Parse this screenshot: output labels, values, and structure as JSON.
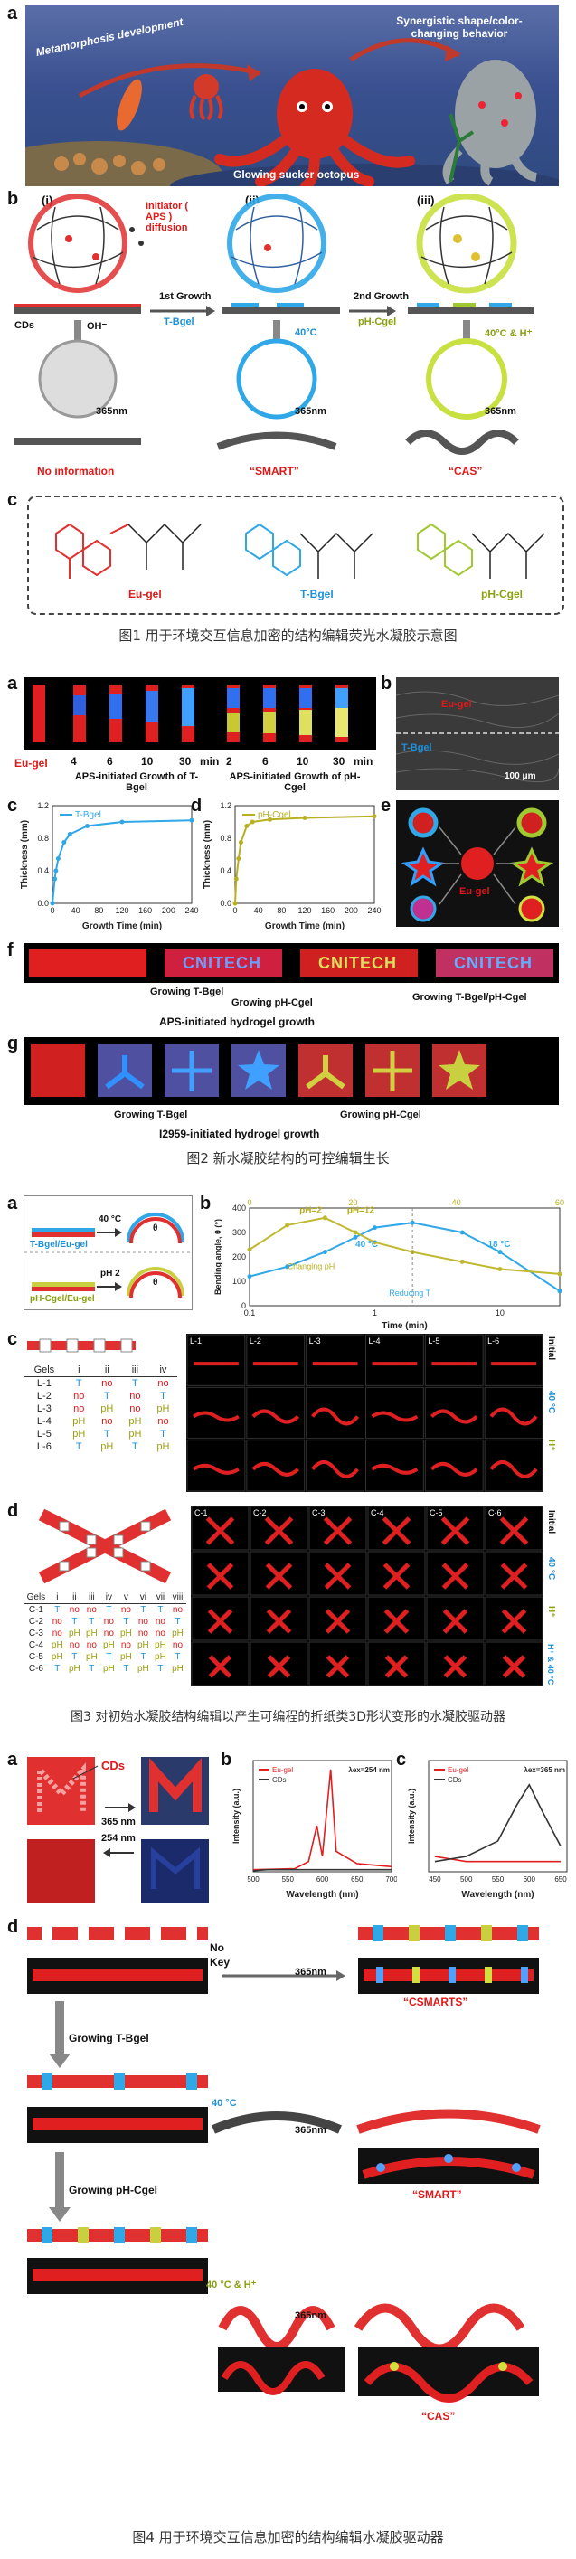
{
  "fig1": {
    "panel_a": "a",
    "panel_b": "b",
    "panel_c": "c",
    "scene": {
      "metamorphosis": "Metamorphosis development",
      "synergistic": "Synergistic shape/color-changing behavior",
      "octopus": "Glowing sucker octopus"
    },
    "steps": {
      "i": "(i)",
      "ii": "(ii)",
      "iii": "(iii)"
    },
    "initiator": "Initiator ( APS ) diffusion",
    "cds": "CDs",
    "oh": "OH⁻",
    "growth1": "1st Growth",
    "tgel": "T-Bgel",
    "growth2": "2nd Growth",
    "pcgel": "pH-Cgel",
    "t40": "40°C",
    "t40h": "40°C & H⁺",
    "nm365": "365nm",
    "no_info": "No information",
    "smart": "“SMART”",
    "cas": "“CAS”",
    "eu_gel": "Eu-gel",
    "t_bgel": "T-Bgel",
    "ph_cgel": "pH-Cgel"
  },
  "caption1": "图1 用于环境交互信息加密的结构编辑荧光水凝胶示意图",
  "fig2": {
    "a": "a",
    "b": "b",
    "c": "c",
    "d": "d",
    "e": "e",
    "f": "f",
    "g": "g",
    "eu_gel": "Eu-gel",
    "times_t": [
      "4",
      "6",
      "10",
      "30"
    ],
    "times_p": [
      "2",
      "6",
      "10",
      "30"
    ],
    "min": "min",
    "aps_t": "APS-initiated Growth of T-Bgel",
    "aps_p": "APS-initiated Growth of pH-Cgel",
    "sem_eu": "Eu-gel",
    "sem_t": "T-Bgel",
    "scale": "100 μm",
    "chart_c_legend": "T-Bgel",
    "chart_d_legend": "pH-Cgel",
    "ylabel": "Thickness (mm)",
    "xlabel": "Growth Time (min)",
    "cnitech": "CNITECH",
    "growing_t": "Growing T-Bgel",
    "growing_p": "Growing pH-Cgel",
    "growing_tp": "Growing T-Bgel/pH-Cgel",
    "aps_growth": "APS-initiated hydrogel growth",
    "i2959_growth": "I2959-initiated hydrogel growth",
    "e_center": "Eu-gel"
  },
  "caption2": "图2 新水凝胶结构的可控编辑生长",
  "fig3": {
    "a": "a",
    "b": "b",
    "c": "c",
    "d": "d",
    "tb_eu": "T-Bgel/Eu-gel",
    "pc_eu": "pH-Cgel/Eu-gel",
    "t40": "40 °C",
    "ph2": "pH 2",
    "theta": "θ",
    "ylabel": "Bending angle, θ (°)",
    "xlabel": "Time (min)",
    "ph2_label": "pH=2",
    "ph12_label": "pH=12",
    "changing_ph": "Changing pH",
    "reducing_t": "Reducing T",
    "c40": "40 °C",
    "c18": "18 °C",
    "gels_head": [
      "Gels",
      "i",
      "ii",
      "iii",
      "iv"
    ],
    "gels_rows": [
      [
        "L-1",
        "T",
        "no",
        "T",
        "no"
      ],
      [
        "L-2",
        "no",
        "T",
        "no",
        "T"
      ],
      [
        "L-3",
        "no",
        "pH",
        "no",
        "pH"
      ],
      [
        "L-4",
        "pH",
        "no",
        "pH",
        "no"
      ],
      [
        "L-5",
        "pH",
        "T",
        "pH",
        "T"
      ],
      [
        "L-6",
        "T",
        "pH",
        "T",
        "pH"
      ]
    ],
    "l_cols": [
      "L-1",
      "L-2",
      "L-3",
      "L-4",
      "L-5",
      "L-6"
    ],
    "c_head": [
      "Gels",
      "i",
      "ii",
      "iii",
      "iv",
      "v",
      "vi",
      "vii",
      "viii"
    ],
    "c_rows": [
      [
        "C-1",
        "T",
        "no",
        "no",
        "T",
        "no",
        "T",
        "T",
        "no"
      ],
      [
        "C-2",
        "no",
        "T",
        "T",
        "no",
        "T",
        "no",
        "no",
        "T"
      ],
      [
        "C-3",
        "no",
        "pH",
        "pH",
        "no",
        "pH",
        "no",
        "no",
        "pH"
      ],
      [
        "C-4",
        "pH",
        "no",
        "no",
        "pH",
        "no",
        "pH",
        "pH",
        "no"
      ],
      [
        "C-5",
        "pH",
        "T",
        "pH",
        "T",
        "pH",
        "T",
        "pH",
        "T"
      ],
      [
        "C-6",
        "T",
        "pH",
        "T",
        "pH",
        "T",
        "pH",
        "T",
        "pH"
      ]
    ],
    "c_cols": [
      "C-1",
      "C-2",
      "C-3",
      "C-4",
      "C-5",
      "C-6"
    ],
    "side_initial": "Initial",
    "side_40": "40 °C",
    "side_h": "H⁺",
    "side_h40": "H⁺ & 40 °C"
  },
  "caption3": "图3 对初始水凝胶结构编辑以产生可编程的折纸类3D形状变形的水凝胶驱动器",
  "fig4": {
    "a": "a",
    "b": "b",
    "c": "c",
    "d": "d",
    "cds": "CDs",
    "m": "M",
    "nm365": "365 nm",
    "nm254": "254 nm",
    "legend_eu": "Eu-gel",
    "legend_cds": "CDs",
    "b_ex": "λex=254 nm",
    "c_ex": "λex=365 nm",
    "ylabel": "Intensity (a.u.)",
    "xlabel": "Wavelength (nm)",
    "b_ticks": [
      "500",
      "550",
      "600",
      "650",
      "700"
    ],
    "c_ticks": [
      "450",
      "500",
      "550",
      "600",
      "650"
    ],
    "no": "No",
    "key": "Key",
    "growing_t": "Growing T-Bgel",
    "growing_p": "Growing pH-Cgel",
    "t40": "40 °C",
    "t40h": "40 °C & H⁺",
    "nm365d": "365nm",
    "csmarts": "“CSMARTS”",
    "smart": "“SMART”",
    "cas": "“CAS”"
  },
  "caption4": "图4 用于环境交互信息加密的结构编辑水凝胶驱动器",
  "chart_data": [
    {
      "type": "line",
      "title": "",
      "xlabel": "Growth Time (min)",
      "ylabel": "Thickness (mm)",
      "series": [
        {
          "name": "T-Bgel",
          "x": [
            0,
            4,
            6,
            10,
            20,
            30,
            60,
            120,
            240
          ],
          "values": [
            0,
            0.3,
            0.4,
            0.55,
            0.75,
            0.85,
            0.95,
            1.0,
            1.02
          ]
        }
      ],
      "xlim": [
        0,
        240
      ],
      "ylim": [
        0,
        1.2
      ],
      "x_ticks": [
        "0",
        "40",
        "80",
        "120",
        "160",
        "200",
        "240"
      ],
      "y_ticks": [
        "0.0",
        "0.4",
        "0.8",
        "1.2"
      ]
    },
    {
      "type": "line",
      "title": "",
      "xlabel": "Growth Time (min)",
      "ylabel": "Thickness (mm)",
      "series": [
        {
          "name": "pH-Cgel",
          "x": [
            0,
            2,
            6,
            10,
            20,
            30,
            60,
            120,
            240
          ],
          "values": [
            0,
            0.3,
            0.55,
            0.75,
            0.95,
            1.0,
            1.03,
            1.05,
            1.07
          ]
        }
      ],
      "xlim": [
        0,
        240
      ],
      "ylim": [
        0,
        1.2
      ],
      "x_ticks": [
        "0",
        "40",
        "80",
        "120",
        "160",
        "200",
        "240"
      ],
      "y_ticks": [
        "0.0",
        "0.4",
        "0.8",
        "1.2"
      ]
    },
    {
      "type": "line",
      "title": "",
      "xlabel": "Time (min)",
      "ylabel": "Bending angle, θ (°)",
      "series": [
        {
          "name": "40 °C",
          "x": [
            0.1,
            0.2,
            0.4,
            0.7,
            1,
            2,
            5,
            10,
            30
          ],
          "values": [
            120,
            160,
            220,
            280,
            320,
            340,
            300,
            220,
            60
          ]
        },
        {
          "name": "pH",
          "x": [
            0.1,
            0.2,
            0.4,
            0.7,
            1,
            2,
            5,
            10,
            30
          ],
          "values": [
            230,
            330,
            360,
            300,
            260,
            220,
            180,
            150,
            130
          ]
        }
      ],
      "xlim": [
        0.1,
        30
      ],
      "ylim": [
        0,
        400
      ],
      "x_ticks": [
        "0.1",
        "1",
        "10"
      ],
      "x2_ticks": [
        "0",
        "20",
        "40",
        "60"
      ],
      "y_ticks": [
        "0",
        "100",
        "200",
        "300",
        "400"
      ]
    },
    {
      "type": "line",
      "title": "",
      "xlabel": "Wavelength (nm)",
      "ylabel": "Intensity (a.u.)",
      "series": [
        {
          "name": "Eu-gel",
          "x": [
            500,
            560,
            580,
            592,
            600,
            612,
            620,
            650,
            700
          ],
          "values": [
            0.02,
            0.03,
            0.1,
            0.45,
            0.15,
            1.0,
            0.2,
            0.08,
            0.05
          ]
        },
        {
          "name": "CDs",
          "x": [
            500,
            520,
            540,
            560,
            580,
            600,
            650,
            700
          ],
          "values": [
            0.01,
            0.02,
            0.02,
            0.02,
            0.02,
            0.02,
            0.02,
            0.02
          ]
        }
      ],
      "xlim": [
        500,
        700
      ]
    },
    {
      "type": "line",
      "title": "",
      "xlabel": "Wavelength (nm)",
      "ylabel": "Intensity (a.u.)",
      "series": [
        {
          "name": "Eu-gel",
          "x": [
            450,
            500,
            550,
            600,
            650
          ],
          "values": [
            0.15,
            0.1,
            0.1,
            0.1,
            0.1
          ]
        },
        {
          "name": "CDs",
          "x": [
            450,
            500,
            550,
            580,
            600,
            620,
            650
          ],
          "values": [
            0.1,
            0.15,
            0.3,
            0.65,
            0.85,
            0.6,
            0.25
          ]
        }
      ],
      "xlim": [
        440,
        660
      ]
    }
  ]
}
